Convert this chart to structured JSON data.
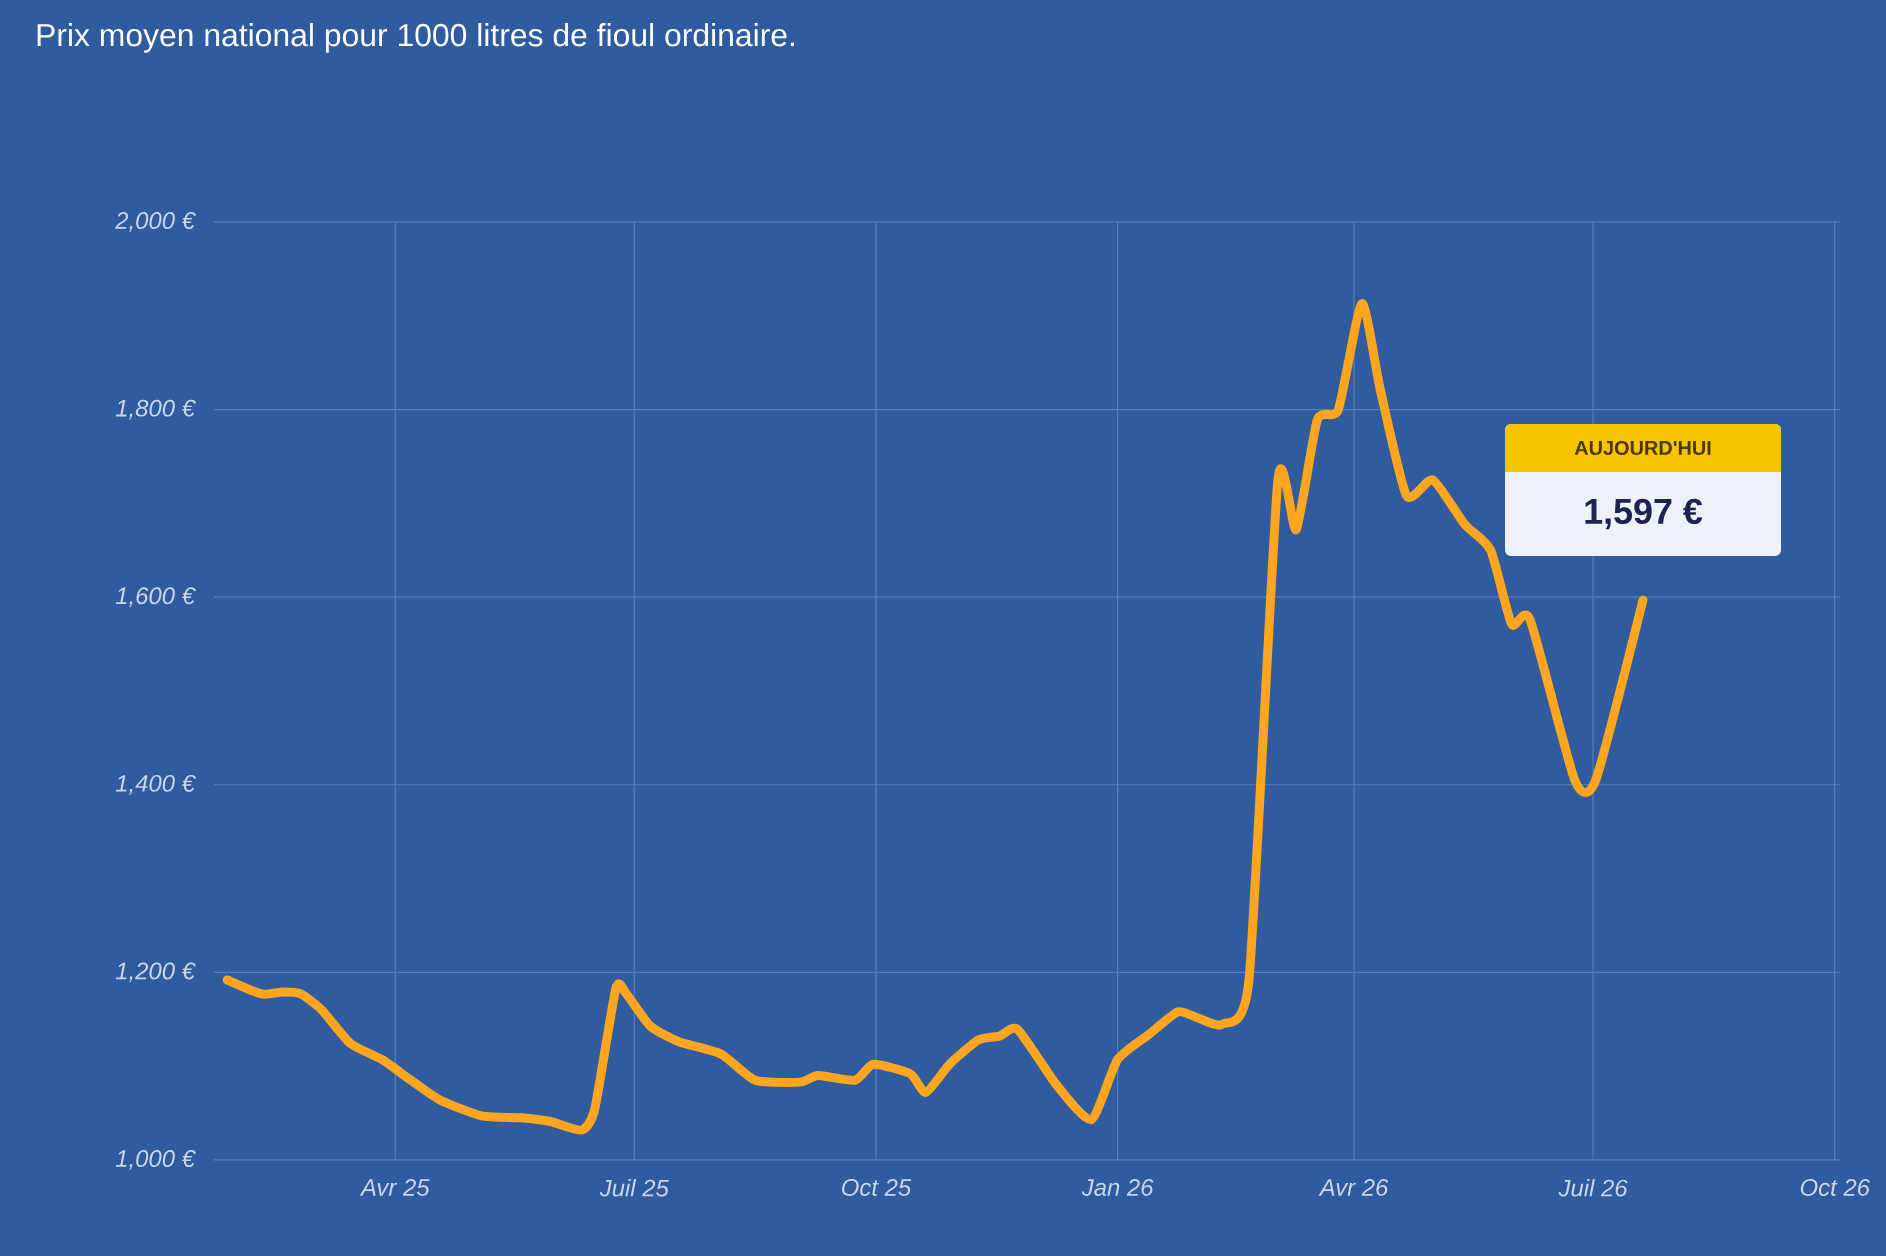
{
  "chart_data": {
    "type": "line",
    "title": "Prix moyen national pour 1000 litres de fioul ordinaire.",
    "x": [
      "2025-01-27",
      "2025-02-09",
      "2025-02-17",
      "2025-02-24",
      "2025-03-04",
      "2025-03-15",
      "2025-03-27",
      "2025-04-07",
      "2025-04-18",
      "2025-05-04",
      "2025-05-19",
      "2025-05-30",
      "2025-06-11",
      "2025-06-16",
      "2025-06-24",
      "2025-06-28",
      "2025-07-07",
      "2025-07-18",
      "2025-08-03",
      "2025-08-16",
      "2025-09-02",
      "2025-09-09",
      "2025-09-23",
      "2025-09-30",
      "2025-10-14",
      "2025-10-20",
      "2025-10-29",
      "2025-11-09",
      "2025-11-17",
      "2025-11-24",
      "2025-12-09",
      "2025-12-22",
      "2026-01-01",
      "2026-01-13",
      "2026-01-24",
      "2026-02-01",
      "2026-02-10",
      "2026-02-20",
      "2026-03-03",
      "2026-03-10",
      "2026-03-18",
      "2026-03-26",
      "2026-04-04",
      "2026-04-11",
      "2026-04-21",
      "2026-05-01",
      "2026-05-13",
      "2026-05-23",
      "2026-05-31",
      "2026-06-07",
      "2026-06-24",
      "2026-07-02",
      "2026-07-20"
    ],
    "series": [
      {
        "color": "#ffa51f",
        "values": [
          1192,
          1177,
          1179,
          1177,
          1160,
          1124,
          1107,
          1085,
          1064,
          1047,
          1045,
          1041,
          1032,
          1055,
          1183,
          1177,
          1143,
          1126,
          1113,
          1085,
          1083,
          1090,
          1085,
          1102,
          1092,
          1072,
          1102,
          1128,
          1132,
          1139,
          1079,
          1043,
          1107,
          1134,
          1158,
          1151,
          1145,
          1192,
          1725,
          1672,
          1789,
          1800,
          1913,
          1821,
          1708,
          1725,
          1678,
          1650,
          1571,
          1576,
          1405,
          1405,
          1597
        ]
      }
    ],
    "xlim": [
      "2025-01-22",
      "2026-10-03"
    ],
    "ylim": [
      1000,
      2000
    ],
    "xticks": [
      {
        "value": "2025-04-01",
        "label": "Avr 25"
      },
      {
        "value": "2025-07-01",
        "label": "Juil 25"
      },
      {
        "value": "2025-10-01",
        "label": "Oct 25"
      },
      {
        "value": "2026-01-01",
        "label": "Jan 26"
      },
      {
        "value": "2026-04-01",
        "label": "Avr 26"
      },
      {
        "value": "2026-07-01",
        "label": "Juil 26"
      },
      {
        "value": "2026-10-01",
        "label": "Oct 26"
      }
    ],
    "yticks": [
      {
        "value": 1000,
        "label": "1,000 €"
      },
      {
        "value": 1200,
        "label": "1,200 €"
      },
      {
        "value": 1400,
        "label": "1,400 €"
      },
      {
        "value": 1600,
        "label": "1,600 €"
      },
      {
        "value": 1800,
        "label": "1,800 €"
      },
      {
        "value": 2000,
        "label": "2,000 €"
      }
    ],
    "grid": true,
    "line_style": "solid",
    "annotations": [
      "AUJOURD'HUI",
      "1,597 €"
    ]
  }
}
